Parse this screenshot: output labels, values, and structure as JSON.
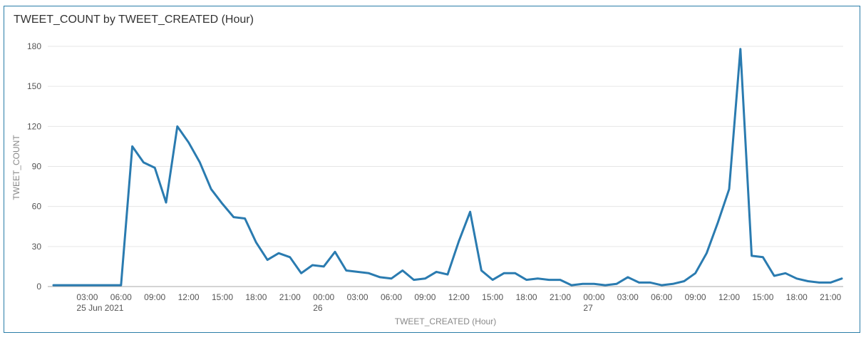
{
  "chart_data": {
    "type": "line",
    "title": "TWEET_COUNT by TWEET_CREATED (Hour)",
    "xlabel": "TWEET_CREATED (Hour)",
    "ylabel": "TWEET_COUNT",
    "ylim": [
      0,
      180
    ],
    "yticks": [
      0,
      30,
      60,
      90,
      120,
      150,
      180
    ],
    "grid": true,
    "line_color": "#2a7bb0",
    "x_start": "2021-06-25 00:00",
    "x_step": "1 hour",
    "xtick_labels": [
      {
        "hour": 3,
        "label": "03:00",
        "sub": "25 Jun 2021"
      },
      {
        "hour": 6,
        "label": "06:00"
      },
      {
        "hour": 9,
        "label": "09:00"
      },
      {
        "hour": 12,
        "label": "12:00"
      },
      {
        "hour": 15,
        "label": "15:00"
      },
      {
        "hour": 18,
        "label": "18:00"
      },
      {
        "hour": 21,
        "label": "21:00"
      },
      {
        "hour": 24,
        "label": "00:00",
        "sub": "26"
      },
      {
        "hour": 27,
        "label": "03:00"
      },
      {
        "hour": 30,
        "label": "06:00"
      },
      {
        "hour": 33,
        "label": "09:00"
      },
      {
        "hour": 36,
        "label": "12:00"
      },
      {
        "hour": 39,
        "label": "15:00"
      },
      {
        "hour": 42,
        "label": "18:00"
      },
      {
        "hour": 45,
        "label": "21:00"
      },
      {
        "hour": 48,
        "label": "00:00",
        "sub": "27"
      },
      {
        "hour": 51,
        "label": "03:00"
      },
      {
        "hour": 54,
        "label": "06:00"
      },
      {
        "hour": 57,
        "label": "09:00"
      },
      {
        "hour": 60,
        "label": "12:00"
      },
      {
        "hour": 63,
        "label": "15:00"
      },
      {
        "hour": 66,
        "label": "18:00"
      },
      {
        "hour": 69,
        "label": "21:00"
      }
    ],
    "series": [
      {
        "values": [
          1,
          1,
          1,
          1,
          1,
          1,
          1,
          105,
          93,
          89,
          63,
          120,
          108,
          93,
          73,
          62,
          52,
          51,
          33,
          20,
          25,
          22,
          10,
          16,
          15,
          26,
          12,
          11,
          10,
          7,
          6,
          12,
          5,
          6,
          11,
          9,
          34,
          56,
          12,
          5,
          10,
          10,
          5,
          6,
          5,
          5,
          1,
          2,
          2,
          1,
          2,
          7,
          3,
          3,
          1,
          2,
          4,
          10,
          25,
          48,
          73,
          178,
          23,
          22,
          8,
          10,
          6,
          4,
          3,
          3,
          6
        ]
      }
    ]
  }
}
